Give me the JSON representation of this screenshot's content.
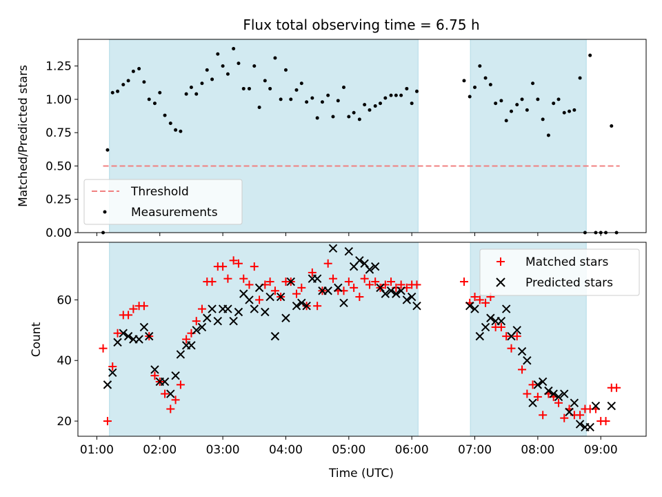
{
  "chart_data": {
    "type": "scatter",
    "title": "Flux total observing time = 6.75 h",
    "xlabel": "Time (UTC)",
    "x_ticks": [
      "01:00",
      "02:00",
      "03:00",
      "04:00",
      "05:00",
      "06:00",
      "07:00",
      "08:00",
      "09:00"
    ],
    "xlim_hours": [
      0.7,
      9.72
    ],
    "observing_windows_hours": [
      [
        1.2,
        6.1
      ],
      [
        6.93,
        8.77
      ]
    ],
    "window_color": "#add8e6",
    "panels": [
      {
        "name": "ratio",
        "ylabel": "Matched/Predicted stars",
        "ylim": [
          0,
          1.45
        ],
        "yticks": [
          "0.00",
          "0.25",
          "0.50",
          "0.75",
          "1.00",
          "1.25"
        ],
        "legend": "lower-left",
        "threshold": {
          "name": "Threshold",
          "value": 0.5,
          "x_range": [
            1.1,
            9.3
          ],
          "color": "#f08080"
        },
        "series": [
          {
            "name": "Measurements",
            "marker": "dot",
            "color": "#000000",
            "x": [
              1.1,
              1.17,
              1.25,
              1.33,
              1.42,
              1.5,
              1.58,
              1.67,
              1.75,
              1.83,
              1.92,
              2.0,
              2.08,
              2.17,
              2.25,
              2.33,
              2.42,
              2.5,
              2.58,
              2.67,
              2.75,
              2.83,
              2.92,
              3.0,
              3.08,
              3.17,
              3.25,
              3.33,
              3.42,
              3.5,
              3.58,
              3.67,
              3.75,
              3.83,
              3.92,
              4.0,
              4.08,
              4.17,
              4.25,
              4.33,
              4.42,
              4.5,
              4.58,
              4.67,
              4.75,
              4.83,
              4.92,
              5.0,
              5.08,
              5.17,
              5.25,
              5.33,
              5.42,
              5.5,
              5.58,
              5.67,
              5.75,
              5.83,
              5.92,
              6.0,
              6.08,
              6.83,
              6.92,
              7.0,
              7.08,
              7.17,
              7.25,
              7.33,
              7.42,
              7.5,
              7.58,
              7.67,
              7.75,
              7.83,
              7.92,
              8.0,
              8.08,
              8.17,
              8.25,
              8.33,
              8.42,
              8.5,
              8.58,
              8.67,
              8.75,
              8.83,
              8.92,
              9.0,
              9.08,
              9.17,
              9.25
            ],
            "y": [
              0.0,
              0.62,
              1.05,
              1.06,
              1.11,
              1.14,
              1.21,
              1.23,
              1.13,
              1.0,
              0.97,
              1.05,
              0.88,
              0.82,
              0.77,
              0.76,
              1.04,
              1.09,
              1.04,
              1.12,
              1.22,
              1.15,
              1.34,
              1.25,
              1.19,
              1.38,
              1.27,
              1.08,
              1.08,
              1.25,
              0.94,
              1.14,
              1.08,
              1.31,
              1.0,
              1.22,
              1.0,
              1.07,
              1.12,
              0.98,
              1.01,
              0.86,
              0.98,
              1.03,
              0.87,
              0.99,
              1.09,
              0.87,
              0.9,
              0.85,
              0.96,
              0.92,
              0.95,
              0.97,
              1.01,
              1.03,
              1.03,
              1.03,
              1.08,
              0.97,
              1.06,
              1.14,
              1.02,
              1.09,
              1.25,
              1.16,
              1.11,
              0.97,
              0.99,
              0.84,
              0.91,
              0.96,
              1.0,
              0.92,
              1.12,
              1.0,
              0.85,
              0.73,
              0.97,
              1.0,
              0.9,
              0.91,
              0.92,
              1.16,
              0.0,
              1.33,
              0.0,
              0.0,
              0.0,
              0.8,
              0.0
            ]
          }
        ]
      },
      {
        "name": "counts",
        "ylabel": "Count",
        "ylim": [
          15,
          79
        ],
        "yticks": [
          20,
          40,
          60
        ],
        "legend": "upper-right",
        "series": [
          {
            "name": "Matched stars",
            "marker": "plus",
            "color": "#ff0000",
            "x": [
              1.1,
              1.17,
              1.25,
              1.33,
              1.42,
              1.5,
              1.58,
              1.67,
              1.75,
              1.83,
              1.92,
              2.0,
              2.08,
              2.17,
              2.25,
              2.33,
              2.42,
              2.5,
              2.58,
              2.67,
              2.75,
              2.83,
              2.92,
              3.0,
              3.08,
              3.17,
              3.25,
              3.33,
              3.42,
              3.5,
              3.58,
              3.67,
              3.75,
              3.83,
              3.92,
              4.0,
              4.08,
              4.17,
              4.25,
              4.33,
              4.42,
              4.5,
              4.58,
              4.67,
              4.75,
              4.83,
              4.92,
              5.0,
              5.08,
              5.17,
              5.25,
              5.33,
              5.42,
              5.5,
              5.58,
              5.67,
              5.75,
              5.83,
              5.92,
              6.0,
              6.08,
              6.83,
              6.92,
              7.0,
              7.08,
              7.17,
              7.25,
              7.33,
              7.42,
              7.5,
              7.58,
              7.67,
              7.75,
              7.83,
              7.92,
              8.0,
              8.08,
              8.17,
              8.25,
              8.33,
              8.42,
              8.5,
              8.58,
              8.67,
              8.75,
              8.83,
              8.92,
              9.0,
              9.08,
              9.17,
              9.25
            ],
            "y": [
              44,
              20,
              38,
              49,
              55,
              55,
              57,
              58,
              58,
              48,
              35,
              33,
              29,
              24,
              27,
              32,
              47,
              49,
              53,
              57,
              66,
              66,
              71,
              71,
              67,
              73,
              72,
              67,
              65,
              71,
              60,
              65,
              66,
              63,
              61,
              66,
              66,
              62,
              64,
              58,
              69,
              58,
              63,
              72,
              67,
              63,
              63,
              66,
              64,
              61,
              67,
              65,
              66,
              64,
              65,
              66,
              64,
              65,
              64,
              65,
              65,
              66,
              59,
              61,
              60,
              59,
              61,
              51,
              51,
              48,
              44,
              48,
              37,
              29,
              32,
              28,
              22,
              29,
              28,
              26,
              21,
              24,
              22,
              22,
              24,
              24,
              24,
              20,
              20,
              31,
              31
            ],
            "note_x_for_last_points": "see x"
          },
          {
            "name": "Predicted stars",
            "marker": "x",
            "color": "#000000",
            "x": [
              1.17,
              1.25,
              1.33,
              1.42,
              1.5,
              1.58,
              1.67,
              1.75,
              1.83,
              1.92,
              2.0,
              2.08,
              2.17,
              2.25,
              2.33,
              2.42,
              2.5,
              2.58,
              2.67,
              2.75,
              2.83,
              2.92,
              3.0,
              3.08,
              3.17,
              3.25,
              3.33,
              3.42,
              3.5,
              3.58,
              3.67,
              3.75,
              3.83,
              3.92,
              4.0,
              4.08,
              4.17,
              4.25,
              4.33,
              4.42,
              4.5,
              4.58,
              4.67,
              4.75,
              4.83,
              4.92,
              5.0,
              5.08,
              5.17,
              5.25,
              5.33,
              5.42,
              5.5,
              5.58,
              5.67,
              5.75,
              5.83,
              5.92,
              6.0,
              6.08,
              6.92,
              7.0,
              7.08,
              7.17,
              7.25,
              7.33,
              7.42,
              7.5,
              7.58,
              7.67,
              7.75,
              7.83,
              7.92,
              8.0,
              8.08,
              8.17,
              8.25,
              8.33,
              8.42,
              8.5,
              8.58,
              8.67,
              8.75,
              8.83,
              8.92,
              9.17
            ],
            "y": [
              32,
              36,
              46,
              49,
              48,
              47,
              47,
              51,
              48,
              37,
              33,
              33,
              29,
              35,
              42,
              45,
              45,
              50,
              51,
              54,
              57,
              53,
              57,
              57,
              53,
              56,
              62,
              60,
              57,
              64,
              56,
              61,
              48,
              61,
              54,
              66,
              58,
              59,
              58,
              67,
              67,
              63,
              63,
              77,
              64,
              59,
              76,
              71,
              73,
              72,
              70,
              71,
              64,
              62,
              63,
              62,
              63,
              60,
              61,
              58,
              58,
              57,
              48,
              51,
              54,
              53,
              53,
              57,
              48,
              50,
              43,
              40,
              26,
              32,
              33,
              30,
              29,
              28,
              29,
              23,
              26,
              19,
              18,
              18,
              25,
              25
            ]
          }
        ]
      }
    ]
  }
}
